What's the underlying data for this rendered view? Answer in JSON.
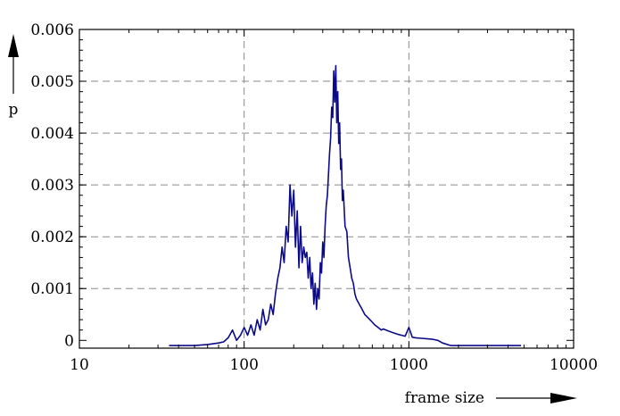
{
  "chart_data": {
    "type": "line",
    "title": "",
    "xlabel": "frame size",
    "ylabel": "p",
    "xscale": "log",
    "xlim": [
      10,
      10000
    ],
    "ylim": [
      -0.00015,
      0.006
    ],
    "x_ticks": [
      10,
      100,
      1000,
      10000
    ],
    "x_tick_labels": [
      "10",
      "100",
      "1000",
      "10000"
    ],
    "y_ticks": [
      0,
      0.001,
      0.002,
      0.003,
      0.004,
      0.005,
      0.006
    ],
    "y_tick_labels": [
      "0",
      "0.001",
      "0.002",
      "0.003",
      "0.004",
      "0.005",
      "0.006"
    ],
    "grid": true,
    "line_color": "#0b0b8a",
    "series": [
      {
        "x": [
          35,
          40,
          50,
          60,
          70,
          75,
          80,
          85,
          90,
          95,
          100,
          105,
          110,
          115,
          120,
          125,
          130,
          135,
          140,
          145,
          150,
          155,
          160,
          165,
          170,
          175,
          180,
          185,
          190,
          195,
          200,
          205,
          210,
          215,
          220,
          225,
          230,
          235,
          240,
          245,
          250,
          255,
          260,
          265,
          270,
          275,
          280,
          285,
          290,
          295,
          300,
          305,
          310,
          315,
          320,
          325,
          330,
          335,
          340,
          345,
          350,
          355,
          360,
          365,
          370,
          375,
          380,
          385,
          390,
          395,
          400,
          410,
          420,
          430,
          440,
          450,
          460,
          470,
          480,
          490,
          500,
          520,
          540,
          560,
          580,
          600,
          620,
          650,
          680,
          700,
          750,
          800,
          850,
          900,
          950,
          1000,
          1050,
          1100,
          1200,
          1300,
          1400,
          1500,
          1600,
          1800,
          2000,
          2500,
          3000,
          4000,
          4800
        ],
        "values": [
          -0.0001,
          -0.0001,
          -0.0001,
          -8e-05,
          -5e-05,
          -3e-05,
          5e-05,
          0.0002,
          0.0,
          0.0001,
          0.00025,
          0.0001,
          0.0003,
          0.0001,
          0.0004,
          0.0002,
          0.0006,
          0.0003,
          0.0004,
          0.0007,
          0.0005,
          0.0009,
          0.0012,
          0.0014,
          0.0018,
          0.0015,
          0.0022,
          0.0019,
          0.003,
          0.0024,
          0.0029,
          0.0018,
          0.0025,
          0.0014,
          0.0022,
          0.0015,
          0.0018,
          0.0016,
          0.0017,
          0.0012,
          0.0016,
          0.001,
          0.0013,
          0.0007,
          0.0011,
          0.0006,
          0.001,
          0.0008,
          0.0015,
          0.0013,
          0.0019,
          0.0016,
          0.0022,
          0.0026,
          0.0028,
          0.0032,
          0.0036,
          0.0039,
          0.0045,
          0.0043,
          0.0052,
          0.0046,
          0.0053,
          0.0042,
          0.0048,
          0.0038,
          0.0042,
          0.0033,
          0.0035,
          0.0027,
          0.0029,
          0.0022,
          0.0021,
          0.0016,
          0.0014,
          0.0012,
          0.0011,
          0.0009,
          0.0008,
          0.00075,
          0.0007,
          0.0006,
          0.0005,
          0.00045,
          0.0004,
          0.00035,
          0.0003,
          0.00025,
          0.0002,
          0.00022,
          0.00018,
          0.00015,
          0.00012,
          0.0001,
          8e-05,
          0.00025,
          6e-05,
          5e-05,
          4e-05,
          3e-05,
          2e-05,
          0.0,
          -5e-05,
          -0.0001,
          -0.0001,
          -0.0001,
          -0.0001,
          -0.0001,
          -0.0001
        ]
      }
    ]
  }
}
